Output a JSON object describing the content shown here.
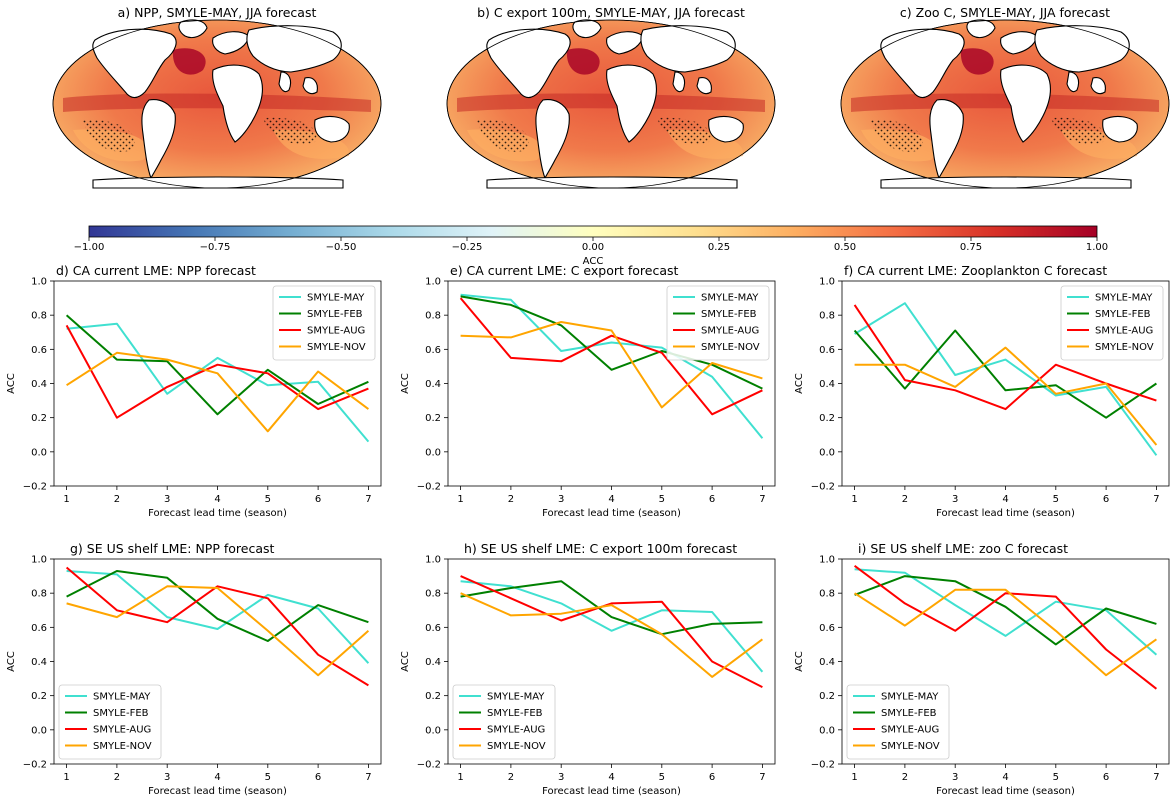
{
  "maps": [
    {
      "title": "a) NPP, SMYLE-MAY, JJA forecast"
    },
    {
      "title": "b) C export 100m, SMYLE-MAY, JJA forecast"
    },
    {
      "title": "c) Zoo C, SMYLE-MAY, JJA forecast"
    }
  ],
  "colorbar": {
    "label": "ACC",
    "ticks": [
      "−1.00",
      "−0.75",
      "−0.50",
      "−0.25",
      "0.00",
      "0.25",
      "0.50",
      "0.75",
      "1.00"
    ],
    "colormap": "RdYlBu_r",
    "colors": [
      "#313695",
      "#4575b4",
      "#74add1",
      "#abd9e9",
      "#e0f3f8",
      "#ffffbf",
      "#fee090",
      "#fdae61",
      "#f46d43",
      "#d73027",
      "#a50026"
    ]
  },
  "chart_data": [
    {
      "type": "line",
      "title": "d) CA current LME: NPP forecast",
      "xlabel": "Forecast lead time (season)",
      "ylabel": "ACC",
      "x": [
        1,
        2,
        3,
        4,
        5,
        6,
        7
      ],
      "ylim": [
        -0.2,
        1.0
      ],
      "yticks": [
        "−0.2",
        "0.0",
        "0.2",
        "0.4",
        "0.6",
        "0.8",
        "1.0"
      ],
      "legend_loc": "upper right",
      "series": [
        {
          "name": "SMYLE-MAY",
          "color": "#40e0d0",
          "values": [
            0.72,
            0.75,
            0.34,
            0.55,
            0.39,
            0.41,
            0.06
          ]
        },
        {
          "name": "SMYLE-FEB",
          "color": "#008000",
          "values": [
            0.8,
            0.54,
            0.53,
            0.22,
            0.48,
            0.28,
            0.41
          ]
        },
        {
          "name": "SMYLE-AUG",
          "color": "#ff0000",
          "values": [
            0.74,
            0.2,
            0.38,
            0.51,
            0.46,
            0.25,
            0.37
          ]
        },
        {
          "name": "SMYLE-NOV",
          "color": "#ffa500",
          "values": [
            0.39,
            0.58,
            0.54,
            0.46,
            0.12,
            0.47,
            0.25
          ]
        }
      ]
    },
    {
      "type": "line",
      "title": "e) CA current LME: C export forecast",
      "xlabel": "Forecast lead time (season)",
      "ylabel": "ACC",
      "x": [
        1,
        2,
        3,
        4,
        5,
        6,
        7
      ],
      "ylim": [
        -0.2,
        1.0
      ],
      "yticks": [
        "−0.2",
        "0.0",
        "0.2",
        "0.4",
        "0.6",
        "0.8",
        "1.0"
      ],
      "legend_loc": "upper right",
      "series": [
        {
          "name": "SMYLE-MAY",
          "color": "#40e0d0",
          "values": [
            0.92,
            0.89,
            0.59,
            0.64,
            0.61,
            0.44,
            0.08
          ]
        },
        {
          "name": "SMYLE-FEB",
          "color": "#008000",
          "values": [
            0.91,
            0.86,
            0.74,
            0.48,
            0.59,
            0.51,
            0.37
          ]
        },
        {
          "name": "SMYLE-AUG",
          "color": "#ff0000",
          "values": [
            0.9,
            0.55,
            0.53,
            0.68,
            0.58,
            0.22,
            0.36
          ]
        },
        {
          "name": "SMYLE-NOV",
          "color": "#ffa500",
          "values": [
            0.68,
            0.67,
            0.76,
            0.71,
            0.26,
            0.52,
            0.43
          ]
        }
      ]
    },
    {
      "type": "line",
      "title": "f) CA current LME: Zooplankton C forecast",
      "xlabel": "Forecast lead time (season)",
      "ylabel": "ACC",
      "x": [
        1,
        2,
        3,
        4,
        5,
        6,
        7
      ],
      "ylim": [
        -0.2,
        1.0
      ],
      "yticks": [
        "−0.2",
        "0.0",
        "0.2",
        "0.4",
        "0.6",
        "0.8",
        "1.0"
      ],
      "legend_loc": "upper right",
      "series": [
        {
          "name": "SMYLE-MAY",
          "color": "#40e0d0",
          "values": [
            0.69,
            0.87,
            0.45,
            0.54,
            0.33,
            0.38,
            -0.02
          ]
        },
        {
          "name": "SMYLE-FEB",
          "color": "#008000",
          "values": [
            0.71,
            0.37,
            0.71,
            0.36,
            0.39,
            0.2,
            0.4
          ]
        },
        {
          "name": "SMYLE-AUG",
          "color": "#ff0000",
          "values": [
            0.86,
            0.42,
            0.36,
            0.25,
            0.51,
            0.4,
            0.3
          ]
        },
        {
          "name": "SMYLE-NOV",
          "color": "#ffa500",
          "values": [
            0.51,
            0.51,
            0.38,
            0.61,
            0.34,
            0.4,
            0.04
          ]
        }
      ]
    },
    {
      "type": "line",
      "title": "g) SE US shelf LME: NPP forecast",
      "xlabel": "Forecast lead time (season)",
      "ylabel": "ACC",
      "x": [
        1,
        2,
        3,
        4,
        5,
        6,
        7
      ],
      "ylim": [
        -0.2,
        1.0
      ],
      "yticks": [
        "−0.2",
        "0.0",
        "0.2",
        "0.4",
        "0.6",
        "0.8",
        "1.0"
      ],
      "legend_loc": "lower left",
      "series": [
        {
          "name": "SMYLE-MAY",
          "color": "#40e0d0",
          "values": [
            0.93,
            0.91,
            0.66,
            0.59,
            0.79,
            0.71,
            0.39
          ]
        },
        {
          "name": "SMYLE-FEB",
          "color": "#008000",
          "values": [
            0.78,
            0.93,
            0.89,
            0.65,
            0.52,
            0.73,
            0.63
          ]
        },
        {
          "name": "SMYLE-AUG",
          "color": "#ff0000",
          "values": [
            0.95,
            0.7,
            0.63,
            0.84,
            0.77,
            0.44,
            0.26
          ]
        },
        {
          "name": "SMYLE-NOV",
          "color": "#ffa500",
          "values": [
            0.74,
            0.66,
            0.84,
            0.83,
            0.58,
            0.32,
            0.58
          ]
        }
      ]
    },
    {
      "type": "line",
      "title": "h) SE US shelf LME: C export 100m forecast",
      "xlabel": "Forecast lead time (season)",
      "ylabel": "ACC",
      "x": [
        1,
        2,
        3,
        4,
        5,
        6,
        7
      ],
      "ylim": [
        -0.2,
        1.0
      ],
      "yticks": [
        "−0.2",
        "0.0",
        "0.2",
        "0.4",
        "0.6",
        "0.8",
        "1.0"
      ],
      "legend_loc": "lower left",
      "series": [
        {
          "name": "SMYLE-MAY",
          "color": "#40e0d0",
          "values": [
            0.87,
            0.84,
            0.74,
            0.58,
            0.7,
            0.69,
            0.34
          ]
        },
        {
          "name": "SMYLE-FEB",
          "color": "#008000",
          "values": [
            0.78,
            0.83,
            0.87,
            0.66,
            0.56,
            0.62,
            0.63
          ]
        },
        {
          "name": "SMYLE-AUG",
          "color": "#ff0000",
          "values": [
            0.9,
            0.77,
            0.64,
            0.74,
            0.75,
            0.4,
            0.25
          ]
        },
        {
          "name": "SMYLE-NOV",
          "color": "#ffa500",
          "values": [
            0.8,
            0.67,
            0.68,
            0.73,
            0.56,
            0.31,
            0.53
          ]
        }
      ]
    },
    {
      "type": "line",
      "title": "i) SE US shelf LME: zoo C forecast",
      "xlabel": "Forecast lead time (season)",
      "ylabel": "ACC",
      "x": [
        1,
        2,
        3,
        4,
        5,
        6,
        7
      ],
      "ylim": [
        -0.2,
        1.0
      ],
      "yticks": [
        "−0.2",
        "0.0",
        "0.2",
        "0.4",
        "0.6",
        "0.8",
        "1.0"
      ],
      "legend_loc": "lower left",
      "series": [
        {
          "name": "SMYLE-MAY",
          "color": "#40e0d0",
          "values": [
            0.94,
            0.92,
            0.73,
            0.55,
            0.75,
            0.7,
            0.44
          ]
        },
        {
          "name": "SMYLE-FEB",
          "color": "#008000",
          "values": [
            0.79,
            0.9,
            0.87,
            0.72,
            0.5,
            0.71,
            0.62
          ]
        },
        {
          "name": "SMYLE-AUG",
          "color": "#ff0000",
          "values": [
            0.96,
            0.74,
            0.58,
            0.8,
            0.78,
            0.47,
            0.24
          ]
        },
        {
          "name": "SMYLE-NOV",
          "color": "#ffa500",
          "values": [
            0.8,
            0.61,
            0.82,
            0.82,
            0.58,
            0.32,
            0.53
          ]
        }
      ]
    }
  ]
}
